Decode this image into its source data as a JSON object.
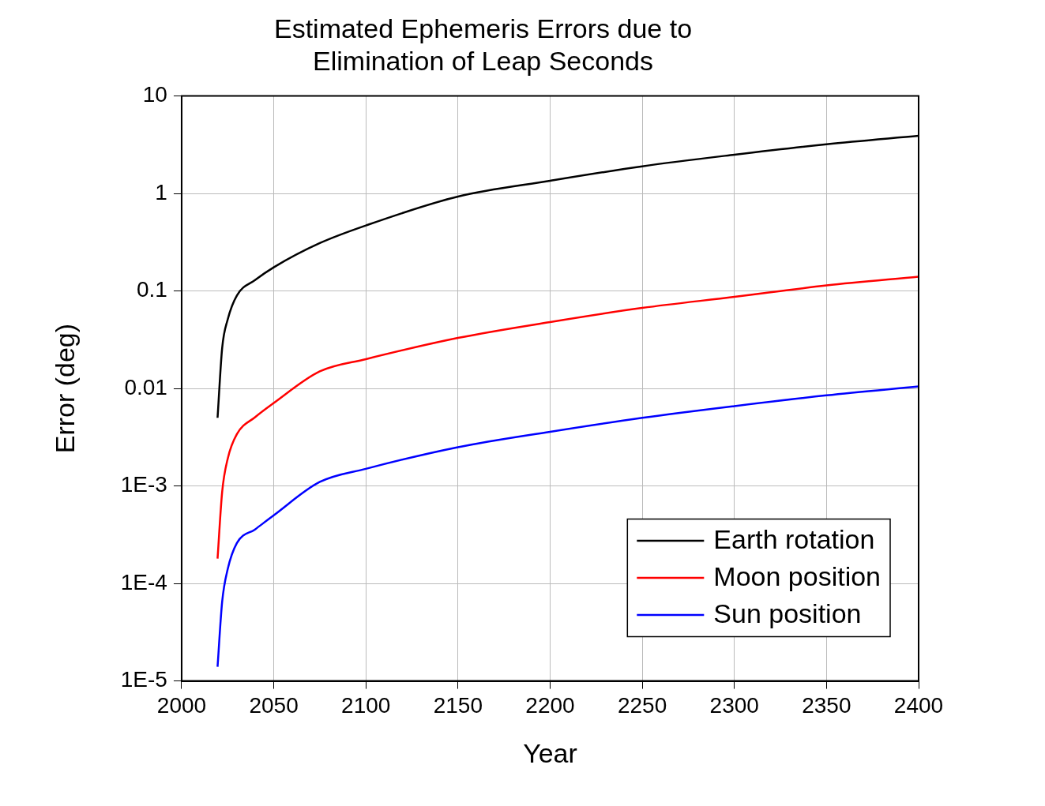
{
  "chart_data": {
    "type": "line",
    "title": "Estimated Ephemeris Errors due to Elimination of Leap Seconds",
    "xlabel": "Year",
    "ylabel": "Error (deg)",
    "xlim": [
      2000,
      2400
    ],
    "xticks": [
      2000,
      2050,
      2100,
      2150,
      2200,
      2250,
      2300,
      2350,
      2400
    ],
    "ylim": [
      1e-05,
      10
    ],
    "yticks": [
      {
        "value": 1e-05,
        "label": "1E-5"
      },
      {
        "value": 0.0001,
        "label": "1E-4"
      },
      {
        "value": 0.001,
        "label": "1E-3"
      },
      0.01,
      0.1,
      1,
      10
    ],
    "log": "y",
    "grid": true,
    "legend": "bottom right",
    "marker": "none",
    "line_style": "solid",
    "series": [
      {
        "name": "Earth rotation",
        "color": "#000000",
        "x": [
          2019.5,
          2022,
          2025,
          2030,
          2040,
          2050,
          2075,
          2100,
          2150,
          2200,
          2250,
          2300,
          2350,
          2400
        ],
        "values": [
          0.005,
          0.026,
          0.051,
          0.09,
          0.13,
          0.175,
          0.31,
          0.47,
          0.93,
          1.35,
          1.9,
          2.5,
          3.2,
          3.9
        ]
      },
      {
        "name": "Moon position",
        "color": "#ff0000",
        "x": [
          2019.5,
          2022,
          2025,
          2030,
          2040,
          2050,
          2075,
          2100,
          2150,
          2200,
          2250,
          2300,
          2350,
          2400
        ],
        "values": [
          0.00018,
          0.00087,
          0.0019,
          0.0034,
          0.0051,
          0.0071,
          0.015,
          0.02,
          0.033,
          0.048,
          0.067,
          0.087,
          0.114,
          0.14
        ]
      },
      {
        "name": "Sun position",
        "color": "#0000ff",
        "x": [
          2019.5,
          2022,
          2025,
          2030,
          2040,
          2050,
          2075,
          2100,
          2150,
          2200,
          2250,
          2300,
          2350,
          2400
        ],
        "values": [
          1.4e-05,
          6.5e-05,
          0.00014,
          0.00026,
          0.00036,
          0.0005,
          0.0011,
          0.0015,
          0.0025,
          0.0036,
          0.005,
          0.0066,
          0.0085,
          0.0105
        ]
      }
    ]
  }
}
